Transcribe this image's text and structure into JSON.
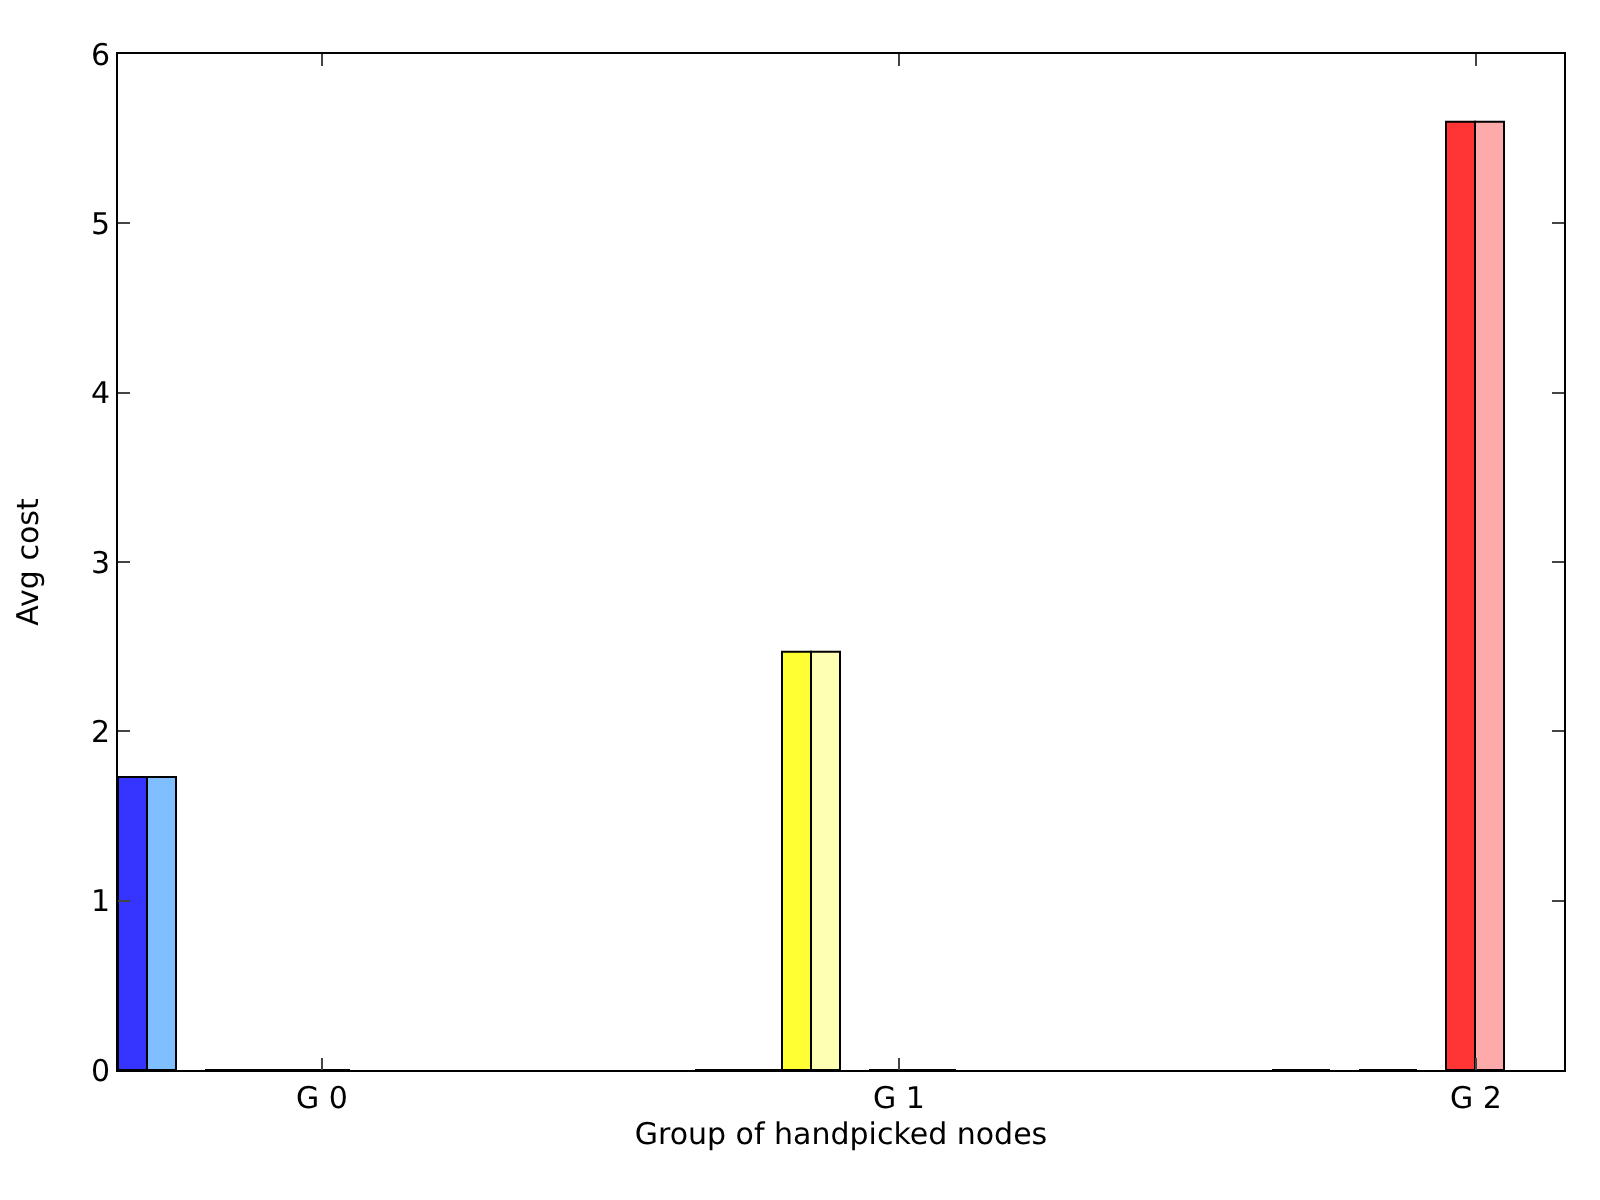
{
  "chart_data": {
    "type": "bar",
    "xlabel": "Group of handpicked nodes",
    "ylabel": "Avg cost",
    "categories": [
      "G 0",
      "G 1",
      "G 2"
    ],
    "series": [
      {
        "colors": [
          "#3535ff",
          "#3535ff",
          "#3535ff"
        ],
        "values": [
          1.73,
          0,
          0
        ]
      },
      {
        "colors": [
          "#80bfff",
          "#80bfff",
          "#80bfff"
        ],
        "values": [
          1.73,
          0,
          0
        ]
      },
      {
        "colors": [
          "#3535ff",
          "#3535ff",
          "#3535ff"
        ],
        "values": [
          null,
          0,
          null
        ]
      },
      {
        "colors": [
          "#ffff33",
          "#ffff33",
          "#ffff33"
        ],
        "values": [
          0,
          2.47,
          0
        ]
      },
      {
        "colors": [
          "#ffffb3",
          "#ffffb3",
          "#ffffb3"
        ],
        "values": [
          0,
          2.47,
          0
        ]
      },
      {
        "colors": [
          "#ffff33",
          "#ffff33",
          "#ffff33"
        ],
        "values": [
          0,
          null,
          null
        ]
      },
      {
        "colors": [
          "#ff3535",
          "#ff3535",
          "#ff3535"
        ],
        "values": [
          0,
          0,
          5.6
        ]
      },
      {
        "colors": [
          "#ffaaaa",
          "#ffaaaa",
          "#ffaaaa"
        ],
        "values": [
          0,
          0,
          5.6
        ]
      },
      {
        "colors": [
          "#ff3535",
          "#ff3535",
          "#ff3535"
        ],
        "values": [
          null,
          0,
          null
        ]
      }
    ],
    "ylim": [
      0,
      6
    ],
    "yticks": [
      0,
      1,
      2,
      3,
      4,
      5,
      6
    ],
    "grid": false
  }
}
